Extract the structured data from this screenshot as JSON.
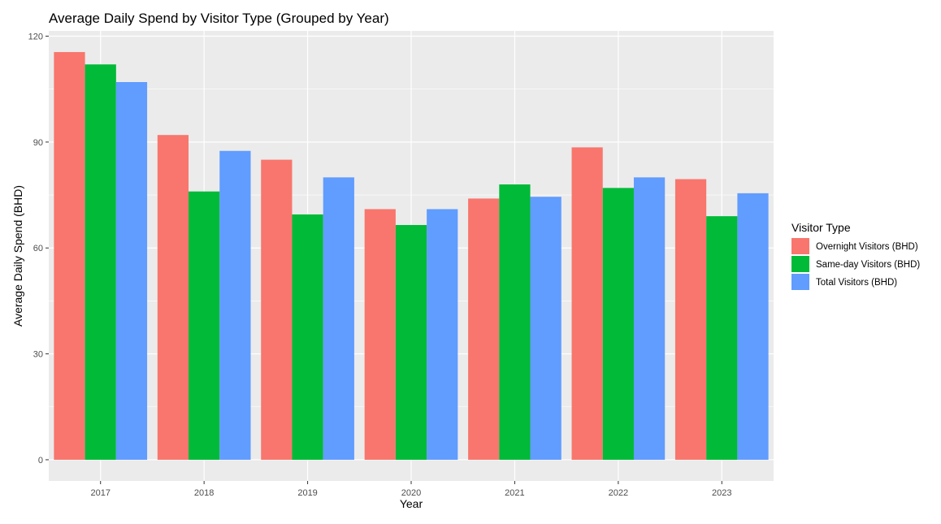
{
  "chart_data": {
    "type": "bar",
    "title": "Average Daily Spend by Visitor Type (Grouped by Year)",
    "xlabel": "Year",
    "ylabel": "Average Daily Spend (BHD)",
    "categories": [
      "2017",
      "2018",
      "2019",
      "2020",
      "2021",
      "2022",
      "2023"
    ],
    "series": [
      {
        "name": "Overnight Visitors (BHD)",
        "color": "#F8766D",
        "values": [
          115.5,
          92.0,
          85.0,
          71.0,
          74.0,
          88.5,
          79.5
        ]
      },
      {
        "name": "Same-day Visitors (BHD)",
        "color": "#00BA38",
        "values": [
          112.0,
          76.0,
          69.5,
          66.5,
          78.0,
          77.0,
          69.0
        ]
      },
      {
        "name": "Total Visitors (BHD)",
        "color": "#619CFF",
        "values": [
          107.0,
          87.5,
          80.0,
          71.0,
          74.5,
          80.0,
          75.5
        ]
      }
    ],
    "ylim": [
      -6,
      121.5
    ],
    "yticks": [
      0,
      30,
      60,
      90,
      120
    ],
    "ytick_labels": [
      "0",
      "30",
      "60",
      "90",
      "120"
    ],
    "grid": true,
    "panel_background": "#EBEBEB",
    "legend": {
      "title": "Visitor Type",
      "position": "right"
    }
  }
}
